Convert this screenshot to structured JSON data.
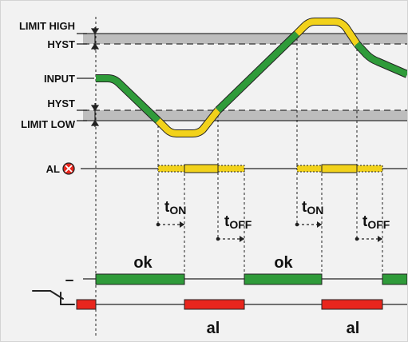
{
  "labels": {
    "limit_high": "LIMIT HIGH",
    "hyst_top": "HYST",
    "input": "INPUT",
    "hyst_bottom": "HYST",
    "limit_low": "LIMIT LOW",
    "alarm": "AL",
    "t": "t",
    "on_sub": "ON",
    "off_sub": "OFF",
    "ok": "ok",
    "al": "al"
  },
  "colors": {
    "ok": "#2f9b3a",
    "alarm": "#e8261d",
    "warning": "#f2d21b",
    "band": "#bdbdbd",
    "background": "#f2f2f2"
  },
  "icons": {
    "alarm": "alarm-x-circle-icon",
    "relay": "relay-switch-icon"
  }
}
